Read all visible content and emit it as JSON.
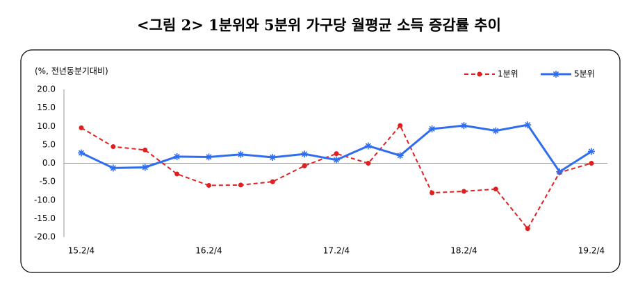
{
  "chart_data": {
    "type": "line",
    "title": "<그림 2> 1분위와 5분위 가구당 월평균 소득 증감률 추이",
    "y_label": "(%, 전년동분기대비)",
    "categories": [
      "15.2/4",
      null,
      null,
      null,
      "16.2/4",
      null,
      null,
      null,
      "17.2/4",
      null,
      null,
      null,
      "18.2/4",
      null,
      null,
      null,
      "19.2/4"
    ],
    "series": [
      {
        "name": "1분위",
        "color": "#e02020",
        "values": [
          9.6,
          4.5,
          3.6,
          -2.9,
          -6.0,
          -5.9,
          -5.0,
          -0.7,
          2.6,
          0.0,
          10.2,
          -8.0,
          -7.6,
          -7.0,
          -17.7,
          -2.5,
          0.0
        ]
      },
      {
        "name": "5분위",
        "color": "#2f6df0",
        "values": [
          2.8,
          -1.3,
          -1.1,
          1.8,
          1.7,
          2.4,
          1.6,
          2.5,
          0.9,
          4.7,
          2.1,
          9.3,
          10.2,
          8.8,
          10.4,
          -2.3,
          3.2
        ]
      }
    ],
    "ylim": [
      -20,
      20
    ],
    "yticks": [
      {
        "value": 20,
        "label": "20.0"
      },
      {
        "value": 15,
        "label": "15.0"
      },
      {
        "value": 10,
        "label": "10.0"
      },
      {
        "value": 5,
        "label": "5.0"
      },
      {
        "value": 0,
        "label": "0.0"
      },
      {
        "value": -5,
        "label": "-5.0"
      },
      {
        "value": -10,
        "label": "-10.0"
      },
      {
        "value": -15,
        "label": "-15.0"
      },
      {
        "value": -20,
        "label": "-20.0"
      }
    ],
    "legend": "top-right"
  }
}
